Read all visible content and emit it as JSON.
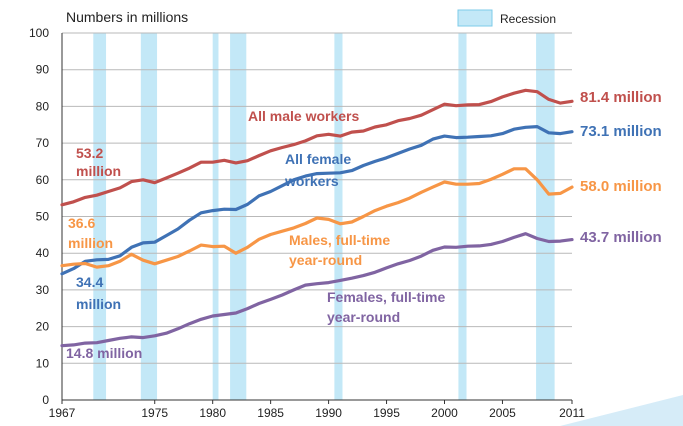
{
  "chart_data": {
    "type": "line",
    "ylabel": "Numbers in millions",
    "ylim": [
      0,
      100
    ],
    "yticks": [
      "0",
      "10",
      "20",
      "30",
      "40",
      "50",
      "60",
      "70",
      "80",
      "90",
      "100"
    ],
    "xlim": [
      1967,
      2011
    ],
    "xticks": [
      "1967",
      "1975",
      "1980",
      "1985",
      "1990",
      "1995",
      "2000",
      "2005",
      "2011"
    ],
    "xtick_values": [
      1967,
      1975,
      1980,
      1985,
      1990,
      1995,
      2000,
      2005,
      2011
    ],
    "legend": {
      "label": "Recession",
      "color": "#c3e8f7",
      "border": "#7ccbe8"
    },
    "recessions": [
      {
        "start": 1969.7,
        "end": 1970.8
      },
      {
        "start": 1973.8,
        "end": 1975.2
      },
      {
        "start": 1980.0,
        "end": 1980.5
      },
      {
        "start": 1981.5,
        "end": 1982.9
      },
      {
        "start": 1990.5,
        "end": 1991.2
      },
      {
        "start": 2001.2,
        "end": 2001.9
      },
      {
        "start": 2007.9,
        "end": 2009.5
      }
    ],
    "x": [
      1967,
      1968,
      1969,
      1970,
      1971,
      1972,
      1973,
      1974,
      1975,
      1976,
      1977,
      1978,
      1979,
      1980,
      1981,
      1982,
      1983,
      1984,
      1985,
      1986,
      1987,
      1988,
      1989,
      1990,
      1991,
      1992,
      1993,
      1994,
      1995,
      1996,
      1997,
      1998,
      1999,
      2000,
      2001,
      2002,
      2003,
      2004,
      2005,
      2006,
      2007,
      2008,
      2009,
      2010,
      2011
    ],
    "series": [
      {
        "name": "All male workers",
        "color": "#c0504d",
        "values": [
          53.2,
          54.0,
          55.2,
          55.8,
          56.8,
          57.8,
          59.5,
          60.0,
          59.2,
          60.5,
          61.8,
          63.2,
          64.8,
          64.8,
          65.3,
          64.6,
          65.2,
          66.6,
          67.9,
          68.8,
          69.6,
          70.6,
          72.0,
          72.4,
          71.9,
          73.0,
          73.3,
          74.4,
          75.0,
          76.1,
          76.7,
          77.6,
          79.1,
          80.6,
          80.2,
          80.4,
          80.5,
          81.3,
          82.6,
          83.6,
          84.4,
          84.0,
          81.9,
          80.9,
          81.4
        ],
        "end_label": "81.4 million",
        "start_label": "53.2\nmillion",
        "annotation": "All male workers"
      },
      {
        "name": "All female workers",
        "color": "#3f72b5",
        "values": [
          34.4,
          35.8,
          37.8,
          38.2,
          38.3,
          39.3,
          41.6,
          42.8,
          43.0,
          44.8,
          46.6,
          49.0,
          51.0,
          51.6,
          52.0,
          51.9,
          53.3,
          55.6,
          56.8,
          58.4,
          60.0,
          61.0,
          61.7,
          61.8,
          61.9,
          62.5,
          63.9,
          65.0,
          66.0,
          67.2,
          68.4,
          69.4,
          71.1,
          71.9,
          71.5,
          71.6,
          71.8,
          72.0,
          72.6,
          73.8,
          74.3,
          74.5,
          72.8,
          72.6,
          73.1
        ],
        "end_label": "73.1 million",
        "start_label": "34.4\nmillion",
        "annotation": "All female\nworkers"
      },
      {
        "name": "Males, full-time year-round",
        "color": "#f79646",
        "values": [
          36.6,
          37.0,
          37.2,
          36.2,
          36.6,
          37.8,
          39.7,
          38.1,
          37.1,
          38.1,
          39.1,
          40.6,
          42.2,
          41.8,
          41.9,
          40.0,
          41.6,
          43.8,
          45.1,
          46.0,
          46.9,
          48.1,
          49.6,
          49.2,
          48.0,
          48.5,
          50.0,
          51.6,
          52.8,
          53.8,
          55.0,
          56.6,
          58.0,
          59.4,
          58.8,
          58.8,
          59.0,
          60.1,
          61.5,
          63.0,
          63.0,
          60.0,
          56.1,
          56.3,
          58.0
        ],
        "end_label": "58.0 million",
        "start_label": "36.6\nmillion",
        "annotation": "Males, full-time\nyear-round"
      },
      {
        "name": "Females, full-time year-round",
        "color": "#8064a2",
        "values": [
          14.8,
          15.0,
          15.5,
          15.6,
          16.2,
          16.8,
          17.2,
          17.0,
          17.5,
          18.2,
          19.4,
          20.8,
          22.0,
          22.9,
          23.3,
          23.7,
          24.9,
          26.3,
          27.4,
          28.6,
          30.0,
          31.3,
          31.7,
          32.0,
          32.6,
          33.2,
          33.9,
          34.8,
          36.0,
          37.1,
          38.0,
          39.2,
          40.8,
          41.7,
          41.6,
          41.9,
          42.0,
          42.4,
          43.2,
          44.3,
          45.3,
          44.0,
          43.2,
          43.3,
          43.7
        ],
        "end_label": "43.7 million",
        "start_label": "14.8 million",
        "annotation": "Females, full-time\nyear-round"
      }
    ]
  }
}
